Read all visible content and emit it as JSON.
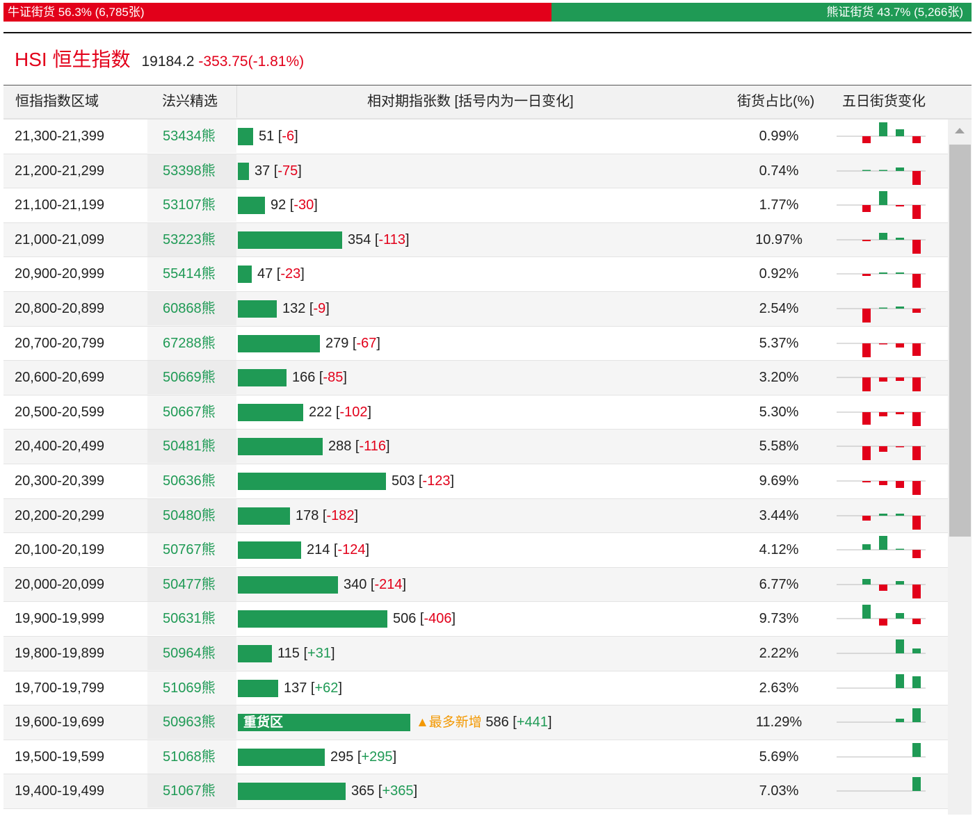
{
  "ratio": {
    "bull_label": "牛证街货 56.3% (6,785张)",
    "bear_label": "熊证街货 43.7% (5,266张)",
    "bull_share_pct": 56.3,
    "bear_share_pct": 43.7,
    "bull_color": "#e2001a",
    "bear_color": "#1f9a55"
  },
  "index": {
    "name": "HSI 恒生指数",
    "value": "19184.2",
    "change": "-353.75(-1.81%)"
  },
  "columns": {
    "range": "恒指指数区域",
    "pick": "法兴精选",
    "count": "相对期指张数 [括号内为一日变化]",
    "share": "街货占比(%)",
    "five_day": "五日街货变化"
  },
  "rows": [
    {
      "range": "21,300-21,399",
      "code": "53434熊",
      "count": 51,
      "change": "-6",
      "share": "0.99%",
      "spark": [
        -1,
        2,
        1,
        0,
        -1
      ]
    },
    {
      "range": "21,200-21,299",
      "code": "53398熊",
      "count": 37,
      "change": "-75",
      "share": "0.74%",
      "spark": [
        0.1,
        0.1,
        0.5,
        0,
        -2
      ]
    },
    {
      "range": "21,100-21,199",
      "code": "53107熊",
      "count": 92,
      "change": "-30",
      "share": "1.77%",
      "spark": [
        -1,
        2,
        -0.2,
        0,
        -2
      ]
    },
    {
      "range": "21,000-21,099",
      "code": "53223熊",
      "count": 354,
      "change": "-113",
      "share": "10.97%",
      "spark": [
        -0.2,
        1,
        0.3,
        0,
        -2
      ]
    },
    {
      "range": "20,900-20,999",
      "code": "55414熊",
      "count": 47,
      "change": "-23",
      "share": "0.92%",
      "spark": [
        -0.3,
        0.2,
        0.2,
        0,
        -2
      ]
    },
    {
      "range": "20,800-20,899",
      "code": "60868熊",
      "count": 132,
      "change": "-9",
      "share": "2.54%",
      "spark": [
        -2,
        0.1,
        0.3,
        0,
        -0.6
      ]
    },
    {
      "range": "20,700-20,799",
      "code": "67288熊",
      "count": 279,
      "change": "-67",
      "share": "5.37%",
      "spark": [
        -2,
        -0.1,
        -0.6,
        0,
        -1.8
      ]
    },
    {
      "range": "20,600-20,699",
      "code": "50669熊",
      "count": 166,
      "change": "-85",
      "share": "3.20%",
      "spark": [
        -2,
        -0.6,
        -0.5,
        0,
        -2
      ]
    },
    {
      "range": "20,500-20,599",
      "code": "50667熊",
      "count": 222,
      "change": "-102",
      "share": "5.30%",
      "spark": [
        -1.8,
        -0.6,
        -0.3,
        0,
        -2
      ]
    },
    {
      "range": "20,400-20,499",
      "code": "50481熊",
      "count": 288,
      "change": "-116",
      "share": "5.58%",
      "spark": [
        -2,
        -0.8,
        -0.1,
        0,
        -2
      ]
    },
    {
      "range": "20,300-20,399",
      "code": "50636熊",
      "count": 503,
      "change": "-123",
      "share": "9.69%",
      "spark": [
        -0.2,
        -0.6,
        -1,
        0,
        -2
      ]
    },
    {
      "range": "20,200-20,299",
      "code": "50480熊",
      "count": 178,
      "change": "-182",
      "share": "3.44%",
      "spark": [
        -0.7,
        0.3,
        0.3,
        0,
        -2
      ]
    },
    {
      "range": "20,100-20,199",
      "code": "50767熊",
      "count": 214,
      "change": "-124",
      "share": "4.12%",
      "spark": [
        0.8,
        2,
        0.1,
        0,
        -1.2
      ]
    },
    {
      "range": "20,000-20,099",
      "code": "50477熊",
      "count": 340,
      "change": "-214",
      "share": "6.77%",
      "spark": [
        0.8,
        -0.9,
        0.5,
        0,
        -2
      ]
    },
    {
      "range": "19,900-19,999",
      "code": "50631熊",
      "count": 506,
      "change": "-406",
      "share": "9.73%",
      "spark": [
        2,
        -1,
        0.8,
        0,
        -0.8
      ]
    },
    {
      "range": "19,800-19,899",
      "code": "50964熊",
      "count": 115,
      "change": "+31",
      "share": "2.22%",
      "spark": [
        0,
        0,
        2,
        0,
        0.7
      ]
    },
    {
      "range": "19,700-19,799",
      "code": "51069熊",
      "count": 137,
      "change": "+62",
      "share": "2.63%",
      "spark": [
        0,
        0,
        2,
        0,
        1.7
      ]
    },
    {
      "range": "19,600-19,699",
      "code": "50963熊",
      "count": 586,
      "change": "+441",
      "share": "11.29%",
      "spark": [
        0,
        0,
        0.5,
        0,
        2
      ],
      "bar_label": "重货区",
      "note": "▲最多新增"
    },
    {
      "range": "19,500-19,599",
      "code": "51068熊",
      "count": 295,
      "change": "+295",
      "share": "5.69%",
      "spark": [
        0,
        0,
        0,
        0,
        2
      ]
    },
    {
      "range": "19,400-19,499",
      "code": "51067熊",
      "count": 365,
      "change": "+365",
      "share": "7.03%",
      "spark": [
        0,
        0,
        0,
        0,
        2
      ]
    }
  ]
}
